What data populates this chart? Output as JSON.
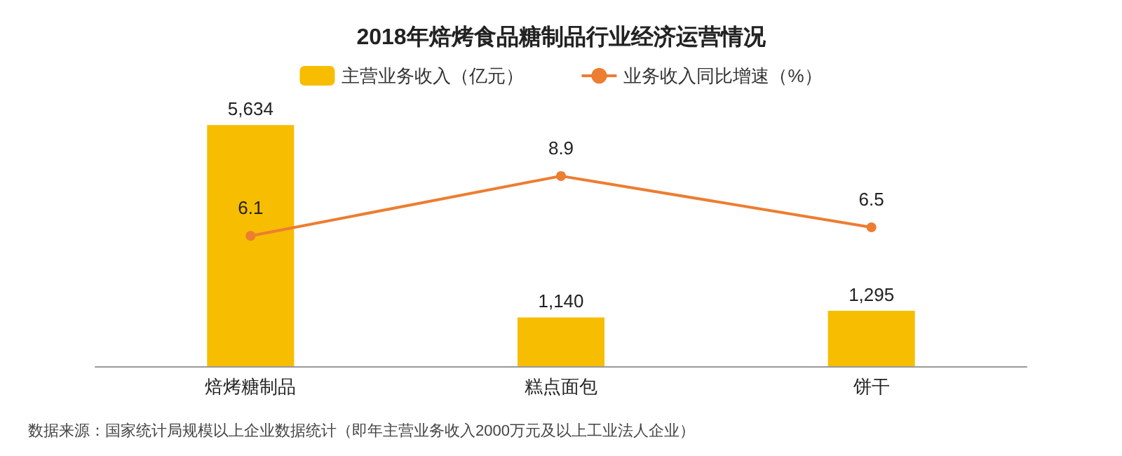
{
  "chart_data": {
    "type": "bar",
    "title": "2018年焙烤食品糖制品行业经济运营情况",
    "categories": [
      "焙烤糖制品",
      "糕点面包",
      "饼干"
    ],
    "series": [
      {
        "name": "主营业务收入（亿元）",
        "color": "#f7bd00",
        "values": [
          5634,
          1140,
          1295
        ],
        "value_labels": [
          "5,634",
          "1,140",
          "1,295"
        ]
      },
      {
        "name": "业务收入同比增速（%）",
        "type": "line",
        "axis": "y2",
        "color": "#ed7d31",
        "values": [
          6.1,
          8.9,
          6.5
        ]
      }
    ],
    "data_labels": true,
    "legend": "top",
    "marker": "circle",
    "grid": false,
    "tick_labels": "x",
    "annotations": [
      "数据来源：国家统计局规模以上企业数据统计（即年主营业务收入2000万元及以上工业法人企业）"
    ]
  }
}
